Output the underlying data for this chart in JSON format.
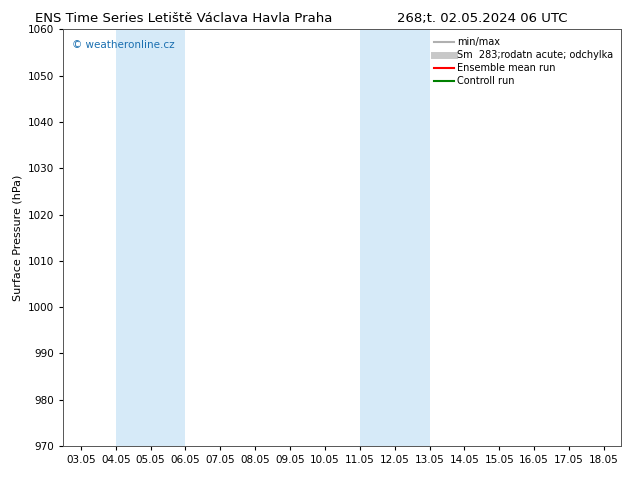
{
  "title_left": "ENS Time Series Letiště Václava Havla Praha",
  "title_right": "268;t. 02.05.2024 06 UTC",
  "ylabel": "Surface Pressure (hPa)",
  "ylim": [
    970,
    1060
  ],
  "yticks": [
    970,
    980,
    990,
    1000,
    1010,
    1020,
    1030,
    1040,
    1050,
    1060
  ],
  "xtick_labels": [
    "03.05",
    "04.05",
    "05.05",
    "06.05",
    "07.05",
    "08.05",
    "09.05",
    "10.05",
    "11.05",
    "12.05",
    "13.05",
    "14.05",
    "15.05",
    "16.05",
    "17.05",
    "18.05"
  ],
  "x_positions": [
    0,
    1,
    2,
    3,
    4,
    5,
    6,
    7,
    8,
    9,
    10,
    11,
    12,
    13,
    14,
    15
  ],
  "shaded_bands": [
    {
      "xmin": 1,
      "xmax": 3
    },
    {
      "xmin": 8,
      "xmax": 10
    }
  ],
  "shaded_color": "#d6eaf8",
  "bg_color": "#ffffff",
  "watermark_text": "© weatheronline.cz",
  "watermark_color": "#1a6fb0",
  "legend_entries": [
    {
      "label": "min/max",
      "color": "#b0b0b0",
      "lw": 1.5,
      "ls": "-"
    },
    {
      "label": "Sm  283;rodatn acute; odchylka",
      "color": "#c8c8c8",
      "lw": 5,
      "ls": "-"
    },
    {
      "label": "Ensemble mean run",
      "color": "#ff0000",
      "lw": 1.5,
      "ls": "-"
    },
    {
      "label": "Controll run",
      "color": "#008000",
      "lw": 1.5,
      "ls": "-"
    }
  ],
  "title_fontsize": 9.5,
  "tick_fontsize": 7.5,
  "ylabel_fontsize": 8,
  "legend_fontsize": 7,
  "watermark_fontsize": 7.5
}
